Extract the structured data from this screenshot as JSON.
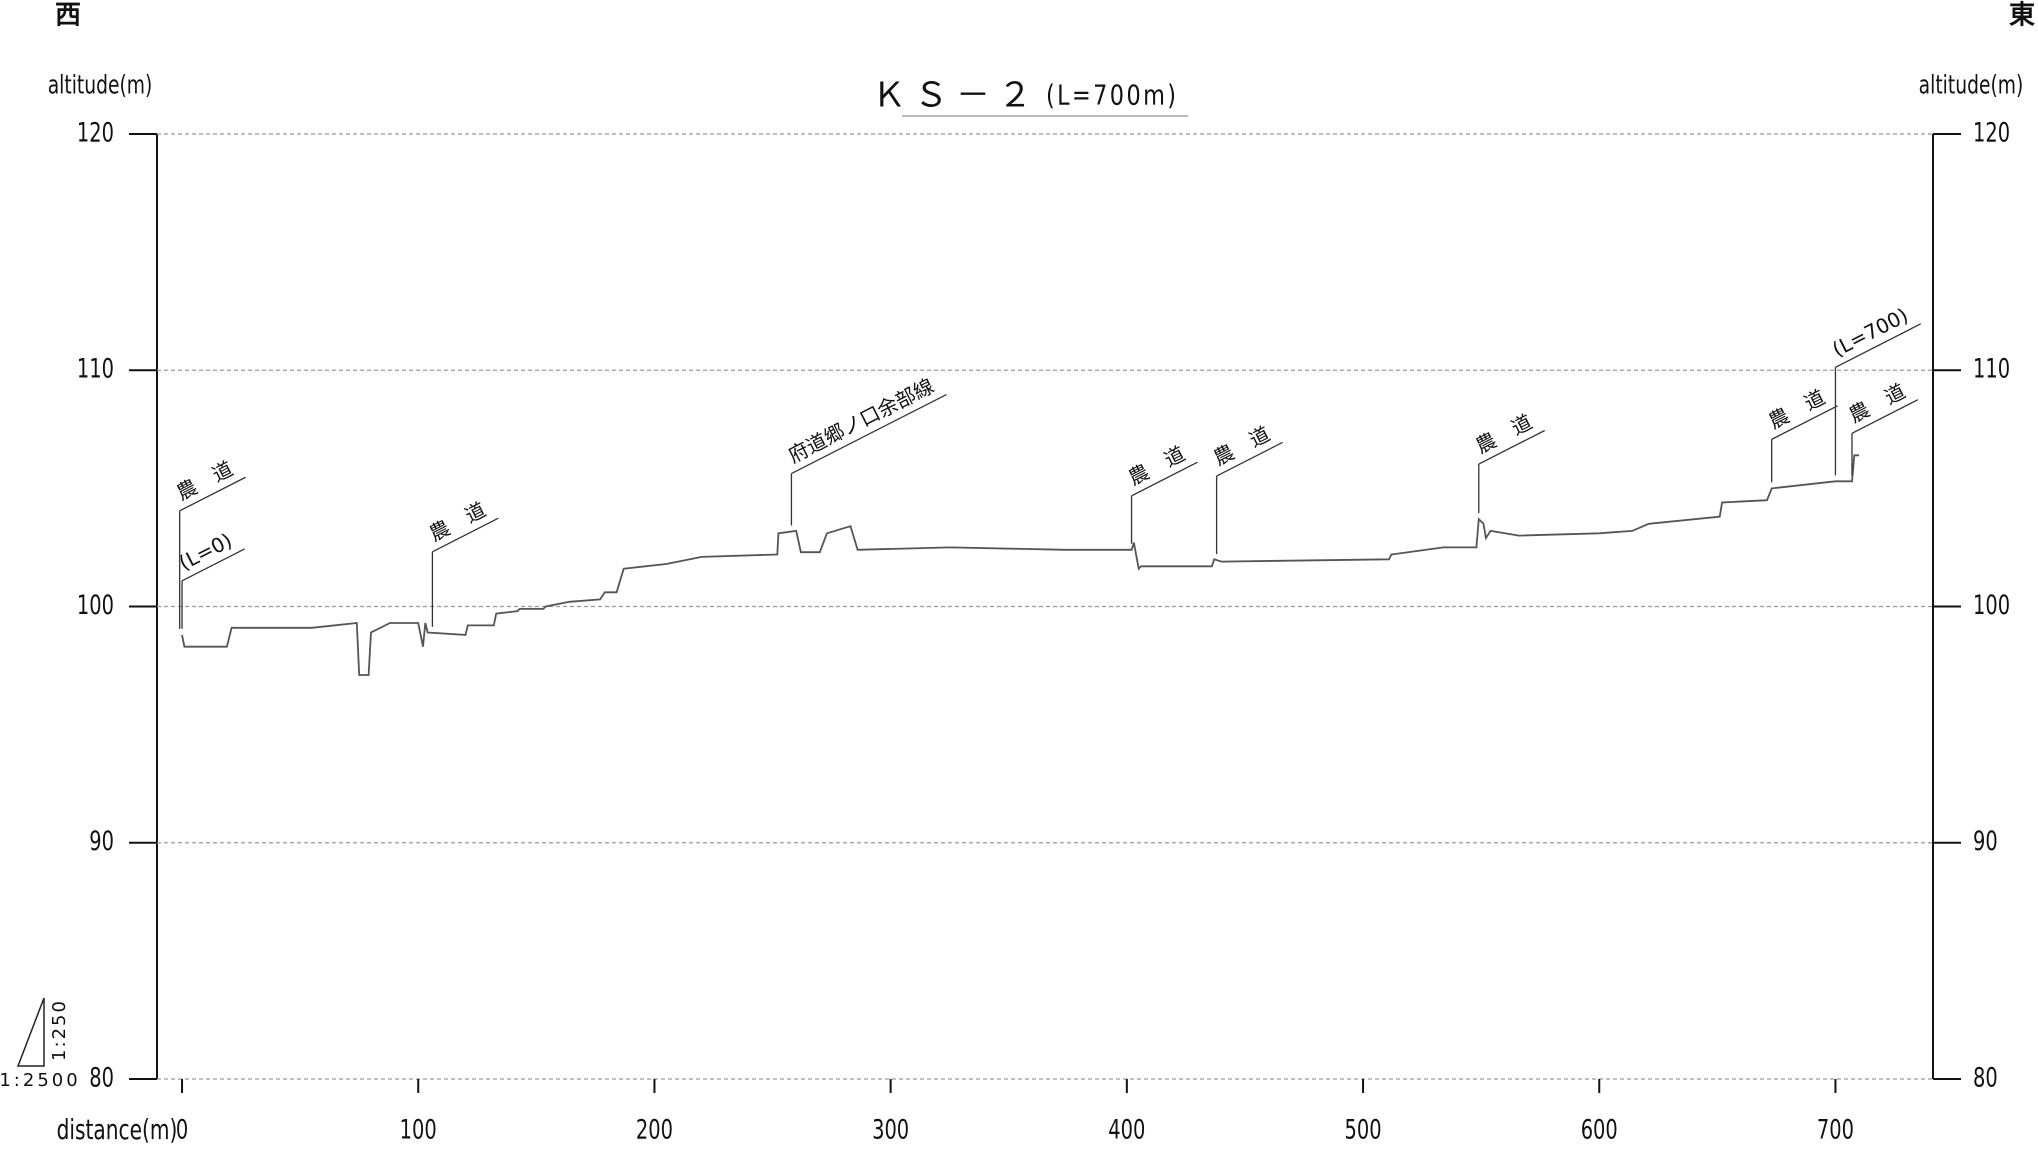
{
  "chart_data": {
    "type": "line",
    "title": "ＫＳ－２",
    "subtitle": "(L=700m)",
    "west_label": "西",
    "east_label": "東",
    "ylabel": "altitude(m)",
    "y2label": "altitude(m)",
    "xlabel": "distance(m)",
    "vertical_scale": "1:250",
    "horizontal_scale": "1:2500",
    "color": "#555555",
    "grid": true,
    "xlim": [
      -10.6,
      741.3
    ],
    "xticks": [
      0,
      100,
      200,
      300,
      400,
      500,
      600,
      700
    ],
    "ylim": [
      80,
      120
    ],
    "yticks": [
      80,
      90,
      100,
      110,
      120
    ],
    "y2lim": [
      80,
      120
    ],
    "y2ticks": [
      80,
      90,
      100,
      110,
      120
    ],
    "x": [
      0,
      1,
      19,
      21,
      55,
      74,
      75,
      79,
      80,
      88,
      100,
      102,
      103,
      104,
      120,
      121,
      132,
      133,
      142,
      143,
      153,
      154,
      164,
      177,
      179,
      184,
      187,
      205,
      220,
      252,
      252.5,
      260,
      262,
      270,
      273,
      283,
      286,
      325,
      374,
      402,
      403,
      405,
      406,
      436,
      437,
      440,
      511,
      512,
      534,
      548,
      549,
      551,
      552,
      554,
      566,
      600,
      614,
      621,
      651,
      652,
      671,
      673,
      700,
      707,
      708,
      710
    ],
    "values": [
      98.8,
      98.3,
      98.3,
      99.1,
      99.1,
      99.3,
      97.1,
      97.1,
      98.9,
      99.3,
      99.3,
      98.3,
      99.3,
      98.9,
      98.8,
      99.2,
      99.2,
      99.7,
      99.8,
      99.9,
      99.9,
      100.0,
      100.2,
      100.3,
      100.6,
      100.6,
      101.6,
      101.8,
      102.1,
      102.2,
      103.1,
      103.2,
      102.3,
      102.3,
      103.1,
      103.4,
      102.4,
      102.5,
      102.4,
      102.4,
      102.7,
      101.6,
      101.7,
      101.7,
      102.0,
      101.9,
      102.0,
      102.2,
      102.5,
      102.5,
      103.7,
      103.5,
      102.9,
      103.2,
      103.0,
      103.1,
      103.2,
      103.5,
      103.8,
      104.4,
      104.5,
      105.0,
      105.3,
      105.3,
      106.4,
      106.4
    ],
    "annotations": [
      {
        "text": "農　道",
        "x": -1
      },
      {
        "text": "(L=0)",
        "x": 0
      },
      {
        "text": "農　道",
        "x": 106
      },
      {
        "text": "府道郷ノ口余部線",
        "x": 258
      },
      {
        "text": "農　道",
        "x": 402
      },
      {
        "text": "農　道",
        "x": 438
      },
      {
        "text": "農　道",
        "x": 549
      },
      {
        "text": "農　道",
        "x": 673
      },
      {
        "text": "(L=700)",
        "x": 700
      },
      {
        "text": "農　道",
        "x": 707
      }
    ]
  }
}
